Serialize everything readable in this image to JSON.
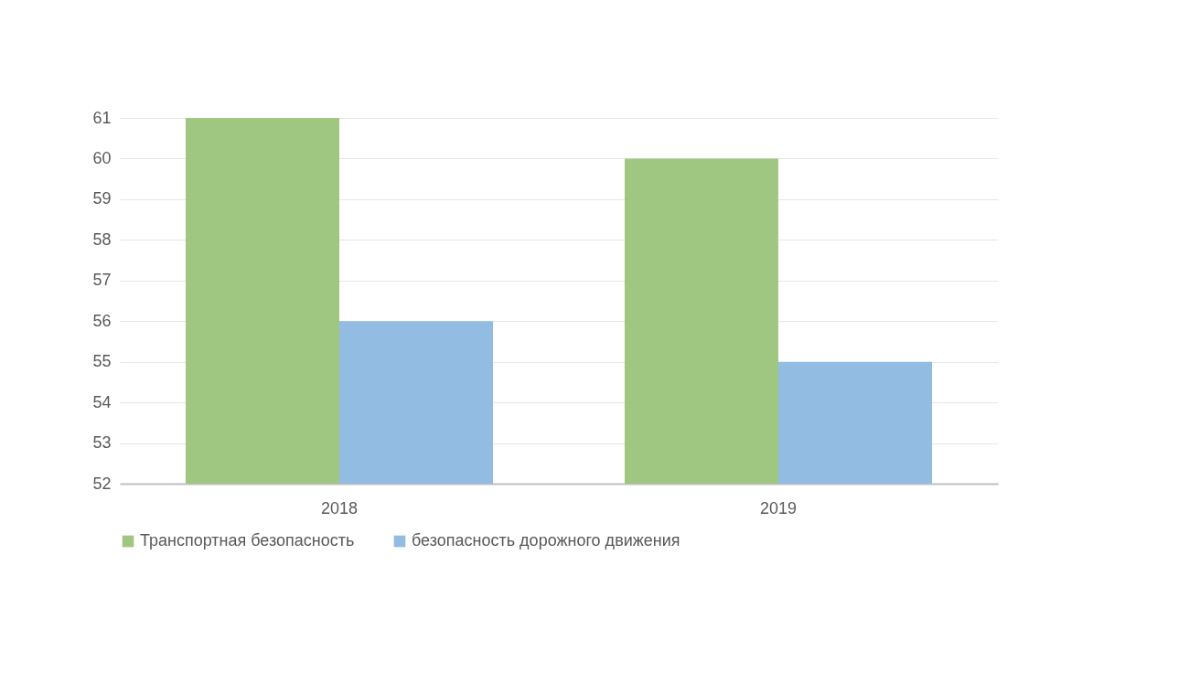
{
  "chart_data": {
    "type": "bar",
    "categories": [
      "2018",
      "2019"
    ],
    "series": [
      {
        "name": "Транспортная безопасность",
        "color": "#9bc47a",
        "values": [
          61,
          60
        ]
      },
      {
        "name": "безопасность дорожного движения",
        "color": "#8db8e0",
        "values": [
          56,
          55
        ]
      }
    ],
    "ylim": [
      52,
      61
    ],
    "yticks": [
      52,
      53,
      54,
      55,
      56,
      57,
      58,
      59,
      60,
      61
    ],
    "grid": "y",
    "legend": "bottom"
  }
}
